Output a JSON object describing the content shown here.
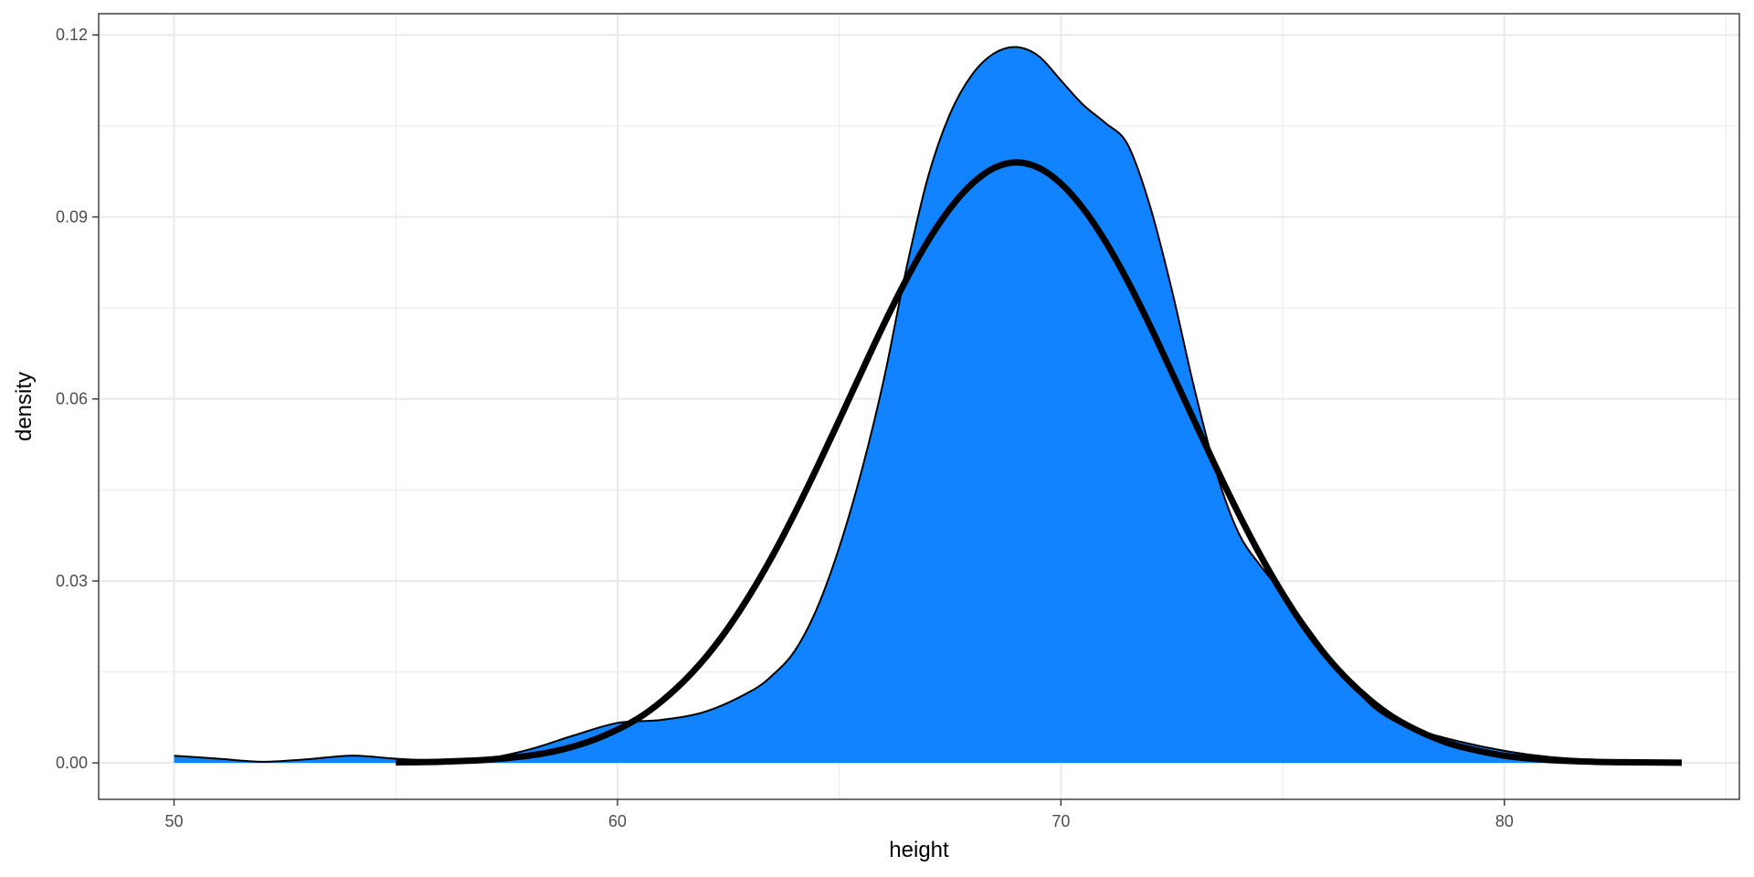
{
  "chart_data": {
    "type": "area",
    "title": "",
    "xlabel": "height",
    "ylabel": "density",
    "xlim": [
      48.3,
      85.3
    ],
    "ylim": [
      -0.006,
      0.1235
    ],
    "x_ticks": [
      50,
      60,
      70,
      80
    ],
    "x_tick_labels": [
      "50",
      "60",
      "70",
      "80"
    ],
    "y_ticks": [
      0,
      0.03,
      0.06,
      0.09,
      0.12
    ],
    "y_tick_labels": [
      "0.00",
      "0.03",
      "0.06",
      "0.09",
      "0.12"
    ],
    "x_minor_ticks": [
      55,
      65,
      75,
      85
    ],
    "y_minor_ticks": [
      0.015,
      0.045,
      0.075,
      0.105
    ],
    "grid": true,
    "legend": "none",
    "colors": {
      "density_fill": "#1283FF",
      "density_outline": "#000000",
      "normal_line": "#000000",
      "grid": "#EBEBEB",
      "panel_border": "#333333"
    },
    "series": [
      {
        "kind": "density-fill",
        "x": [
          50,
          51,
          52,
          53,
          54,
          55,
          56,
          57,
          58,
          59,
          60,
          61,
          62,
          63,
          63.5,
          64,
          64.5,
          65,
          65.5,
          66,
          66.5,
          67,
          67.5,
          68,
          68.5,
          69,
          69.5,
          70,
          70.5,
          71,
          71.5,
          72,
          72.5,
          73,
          73.5,
          74,
          74.5,
          75,
          75.5,
          76,
          76.5,
          77,
          77.5,
          78,
          79,
          80,
          81,
          82,
          83,
          84
        ],
        "y": [
          0.0012,
          0.0007,
          0.0002,
          0.0006,
          0.0012,
          0.0007,
          0.0004,
          0.0007,
          0.0022,
          0.0045,
          0.0066,
          0.0071,
          0.0085,
          0.0118,
          0.0145,
          0.0185,
          0.0255,
          0.0355,
          0.048,
          0.063,
          0.081,
          0.0965,
          0.107,
          0.1135,
          0.117,
          0.118,
          0.1165,
          0.1125,
          0.1085,
          0.1055,
          0.102,
          0.092,
          0.078,
          0.062,
          0.048,
          0.038,
          0.0325,
          0.028,
          0.023,
          0.018,
          0.0135,
          0.0095,
          0.007,
          0.0055,
          0.0035,
          0.002,
          0.001,
          0.0005,
          0.0002,
          0.0001
        ]
      },
      {
        "kind": "normal-curve",
        "x": [
          55,
          56,
          57,
          57.5,
          58,
          58.5,
          59,
          59.5,
          60,
          60.5,
          61,
          61.5,
          62,
          62.5,
          63,
          63.5,
          64,
          64.5,
          65,
          65.5,
          66,
          66.5,
          67,
          67.5,
          68,
          68.5,
          69,
          69.5,
          70,
          70.5,
          71,
          71.5,
          72,
          72.5,
          73,
          73.5,
          74,
          74.5,
          75,
          75.5,
          76,
          76.5,
          77,
          77.5,
          78,
          78.5,
          79,
          80,
          81,
          82,
          83,
          84
        ],
        "y": [
          0.0001,
          0.0002,
          0.0005,
          0.0008,
          0.0012,
          0.0018,
          0.0027,
          0.0039,
          0.0055,
          0.0075,
          0.0102,
          0.0135,
          0.0175,
          0.0223,
          0.0279,
          0.0342,
          0.0412,
          0.0487,
          0.0565,
          0.0644,
          0.0722,
          0.0795,
          0.086,
          0.0914,
          0.0955,
          0.0981,
          0.099,
          0.0981,
          0.0955,
          0.0914,
          0.086,
          0.0795,
          0.0722,
          0.0644,
          0.0565,
          0.0487,
          0.0412,
          0.0342,
          0.0279,
          0.0223,
          0.0175,
          0.0135,
          0.0102,
          0.0075,
          0.0055,
          0.0039,
          0.0027,
          0.0012,
          0.0005,
          0.0002,
          0.0001,
          5e-05
        ]
      }
    ]
  }
}
